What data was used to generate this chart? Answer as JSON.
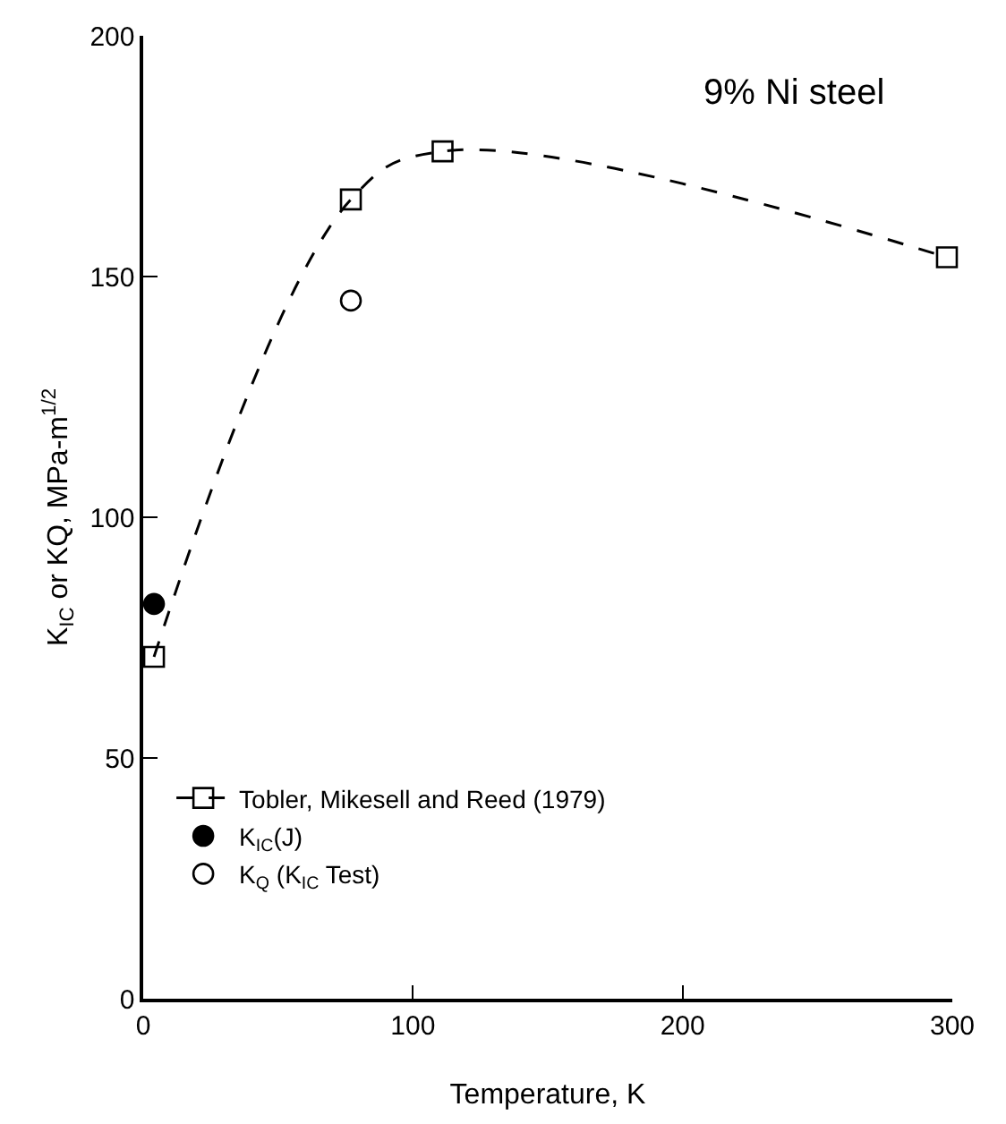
{
  "chart_data": {
    "type": "scatter",
    "xlabel": "Temperature, K",
    "ylabel": "K$_{IC}$ or KQ, MPa-m$^{1/2}$",
    "annotations": [
      "9% Ni steel"
    ],
    "xlim": [
      0,
      300
    ],
    "xticks": [
      0,
      100,
      200,
      300
    ],
    "ylim": [
      0,
      200
    ],
    "yticks": [
      0,
      50,
      100,
      150,
      200
    ],
    "grid": false,
    "legend": "bottom left",
    "series": [
      {
        "name": "Tobler, Mikesell and Reed (1979)",
        "type": "line",
        "color": "#000000",
        "marker": "square",
        "line_style": "dashed",
        "x": [
          4,
          77,
          111,
          298
        ],
        "values": [
          71,
          166,
          176,
          154
        ]
      },
      {
        "name": "K$_{IC}$(J)",
        "color": "#000000",
        "marker": "circle",
        "x": [
          4
        ],
        "values": [
          82
        ]
      },
      {
        "name": "K$_{Q}$ (K$_{IC}$ Test)",
        "color": "#ffffff",
        "marker": "circle",
        "x": [
          77
        ],
        "values": [
          145
        ]
      }
    ]
  }
}
